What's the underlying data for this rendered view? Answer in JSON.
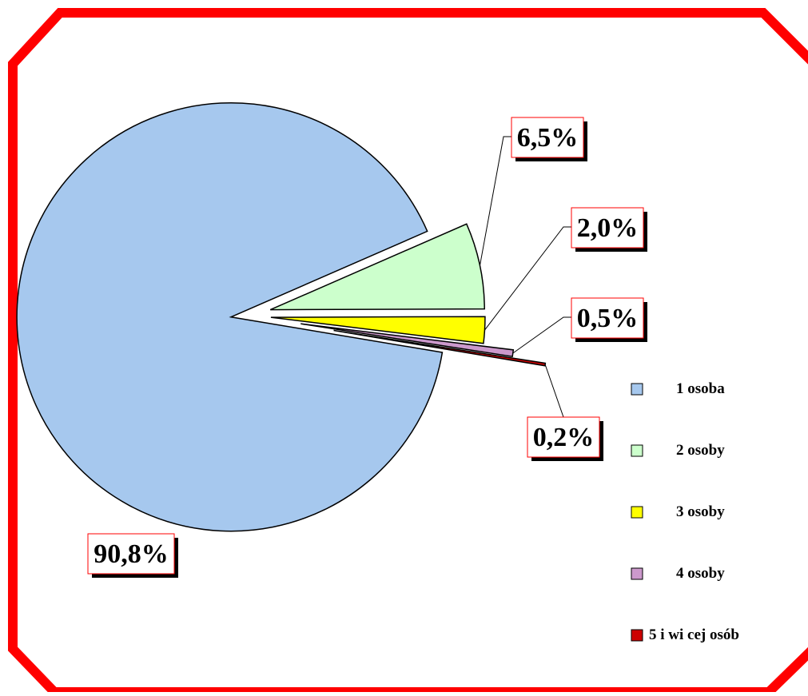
{
  "chart_data": {
    "type": "pie",
    "title": "",
    "categories": [
      "1 osoba",
      "2 osoby",
      "3 osoby",
      "4 osoby",
      "5 i wi  cej osób"
    ],
    "values": [
      90.8,
      6.5,
      2.0,
      0.5,
      0.2
    ],
    "labels": [
      "90,8%",
      "6,5%",
      "2,0%",
      "0,5%",
      "0,2%"
    ],
    "colors": [
      "#a6c8ee",
      "#ccffcc",
      "#ffff00",
      "#cc99cc",
      "#cc0000"
    ],
    "exploded": true,
    "legend_position": "right",
    "frame_color": "#ff0000"
  }
}
